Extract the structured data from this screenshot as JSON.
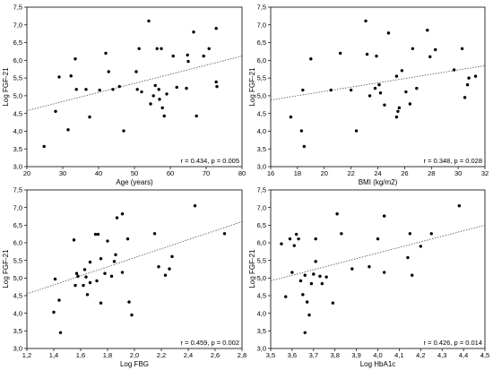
{
  "style": {
    "background": "#ffffff",
    "point_color": "#000000",
    "trend_color": "#444444"
  },
  "chart_data": [
    {
      "type": "scatter",
      "xlabel": "Age (years)",
      "ylabel": "Log FGF-21",
      "xlim": [
        20,
        80
      ],
      "ylim": [
        3.0,
        7.5
      ],
      "xticks": [
        "20",
        "30",
        "40",
        "50",
        "60",
        "70",
        "80"
      ],
      "yticks": [
        "3,0",
        "3,5",
        "4,0",
        "4,5",
        "5,0",
        "5,5",
        "6,0",
        "6,5",
        "7,0",
        "7,5"
      ],
      "grid": false,
      "annotation": "r = 0.434, p = 0.005",
      "x": [
        24.8,
        28.0,
        29.0,
        31.5,
        32.3,
        33.5,
        33.8,
        36.5,
        37.5,
        40.3,
        42.0,
        42.8,
        44.0,
        45.8,
        47.0,
        50.5,
        50.8,
        51.3,
        52.0,
        54.0,
        54.5,
        55.3,
        55.8,
        56.3,
        56.8,
        57.0,
        57.5,
        57.8,
        58.3,
        59.0,
        60.8,
        61.8,
        64.5,
        64.8,
        65.0,
        66.5,
        67.3,
        69.3,
        70.8,
        72.8,
        72.8,
        73.0
      ],
      "y": [
        3.57,
        4.56,
        5.53,
        4.04,
        5.56,
        6.04,
        5.18,
        5.18,
        4.4,
        5.16,
        6.2,
        5.68,
        5.18,
        5.26,
        4.01,
        5.68,
        5.18,
        6.33,
        5.11,
        7.11,
        4.77,
        5.0,
        5.29,
        6.33,
        5.18,
        4.9,
        6.33,
        4.66,
        4.43,
        5.05,
        6.12,
        5.24,
        5.21,
        6.15,
        5.97,
        6.8,
        4.43,
        6.12,
        6.33,
        6.9,
        5.39,
        5.26
      ],
      "trend_line": {
        "x": [
          20,
          80
        ],
        "y": [
          4.58,
          6.12
        ]
      }
    },
    {
      "type": "scatter",
      "xlabel": "BMI (kg/m2)",
      "ylabel": "Log FGF-21",
      "xlim": [
        16,
        32
      ],
      "ylim": [
        3.0,
        7.5
      ],
      "xticks": [
        "16",
        "18",
        "20",
        "22",
        "24",
        "26",
        "28",
        "30",
        "32"
      ],
      "yticks": [
        "3,0",
        "3,5",
        "4,0",
        "4,5",
        "5,0",
        "5,5",
        "6,0",
        "6,5",
        "7,0",
        "7,5"
      ],
      "grid": false,
      "annotation": "r = 0.348, p = 0.028",
      "x": [
        17.5,
        18.3,
        18.4,
        18.5,
        19.0,
        20.5,
        21.2,
        22.0,
        22.4,
        23.1,
        23.2,
        23.4,
        23.8,
        23.9,
        24.1,
        24.2,
        24.5,
        24.8,
        25.4,
        25.4,
        25.5,
        25.6,
        25.8,
        26.1,
        26.4,
        26.6,
        26.9,
        27.7,
        27.9,
        28.3,
        29.7,
        30.3,
        30.5,
        30.7,
        30.8,
        31.3
      ],
      "y": [
        4.4,
        4.01,
        5.16,
        3.57,
        6.04,
        5.16,
        6.2,
        5.16,
        4.01,
        7.11,
        6.17,
        5.0,
        5.21,
        6.12,
        5.31,
        5.08,
        4.74,
        6.77,
        5.55,
        4.4,
        4.56,
        4.66,
        5.71,
        5.11,
        4.77,
        6.33,
        5.21,
        6.85,
        6.1,
        6.3,
        5.73,
        6.33,
        4.95,
        5.31,
        5.5,
        5.55
      ],
      "trend_line": {
        "x": [
          16,
          32
        ],
        "y": [
          4.88,
          5.85
        ]
      }
    },
    {
      "type": "scatter",
      "xlabel": "Log FBG",
      "ylabel": "Log FGF-21",
      "xlim": [
        1.2,
        2.8
      ],
      "ylim": [
        3.0,
        7.5
      ],
      "xticks": [
        "1,2",
        "1,4",
        "1,6",
        "1,8",
        "2,0",
        "2,2",
        "2,4",
        "2,6",
        "2,8"
      ],
      "yticks": [
        "3,0",
        "3,5",
        "4,0",
        "4,5",
        "5,0",
        "5,5",
        "6,0",
        "6,5",
        "7,0",
        "7,5"
      ],
      "grid": false,
      "annotation": "r = 0.459, p = 0.002",
      "x": [
        1.4,
        1.41,
        1.44,
        1.45,
        1.55,
        1.56,
        1.57,
        1.58,
        1.62,
        1.63,
        1.64,
        1.65,
        1.67,
        1.67,
        1.71,
        1.72,
        1.73,
        1.75,
        1.75,
        1.78,
        1.8,
        1.83,
        1.85,
        1.86,
        1.87,
        1.91,
        1.91,
        1.95,
        1.96,
        1.98,
        2.15,
        2.18,
        2.23,
        2.26,
        2.28,
        2.45,
        2.67
      ],
      "y": [
        4.03,
        4.97,
        4.37,
        3.45,
        6.08,
        4.79,
        5.13,
        5.05,
        4.79,
        5.24,
        5.03,
        4.53,
        5.45,
        4.87,
        6.24,
        4.92,
        6.24,
        5.55,
        4.29,
        5.13,
        6.05,
        5.05,
        5.47,
        5.66,
        6.71,
        6.82,
        5.16,
        6.11,
        4.32,
        3.95,
        6.26,
        5.32,
        5.08,
        5.26,
        5.61,
        7.05,
        6.26
      ],
      "trend_line": {
        "x": [
          1.2,
          2.8
        ],
        "y": [
          4.55,
          6.6
        ]
      }
    },
    {
      "type": "scatter",
      "xlabel": "Log HbA1c",
      "ylabel": "Log FGF-21",
      "xlim": [
        3.5,
        4.5
      ],
      "ylim": [
        3.0,
        7.5
      ],
      "xticks": [
        "3,5",
        "3,6",
        "3,7",
        "3,8",
        "3,9",
        "4,0",
        "4,1",
        "4,2",
        "4,3",
        "4,4",
        "4,5"
      ],
      "yticks": [
        "3,0",
        "3,5",
        "4,0",
        "4,5",
        "5,0",
        "5,5",
        "6,0",
        "6,5",
        "7,0",
        "7,5"
      ],
      "grid": false,
      "annotation": "r = 0.426, p = 0.014",
      "x": [
        3.55,
        3.57,
        3.59,
        3.6,
        3.61,
        3.62,
        3.63,
        3.64,
        3.65,
        3.66,
        3.66,
        3.67,
        3.68,
        3.69,
        3.7,
        3.71,
        3.71,
        3.73,
        3.74,
        3.76,
        3.79,
        3.81,
        3.83,
        3.88,
        3.96,
        4.0,
        4.03,
        4.03,
        4.14,
        4.15,
        4.16,
        4.2,
        4.25,
        4.38
      ],
      "y": [
        5.97,
        4.47,
        6.11,
        5.16,
        5.92,
        6.24,
        6.11,
        4.92,
        4.53,
        3.45,
        5.08,
        4.32,
        3.95,
        4.84,
        5.11,
        5.47,
        6.11,
        5.05,
        4.84,
        5.03,
        4.29,
        6.82,
        6.26,
        5.26,
        5.32,
        6.11,
        6.76,
        5.16,
        5.58,
        6.26,
        5.08,
        5.9,
        6.26,
        7.05
      ],
      "trend_line": {
        "x": [
          3.5,
          4.5
        ],
        "y": [
          4.92,
          6.5
        ]
      }
    }
  ]
}
